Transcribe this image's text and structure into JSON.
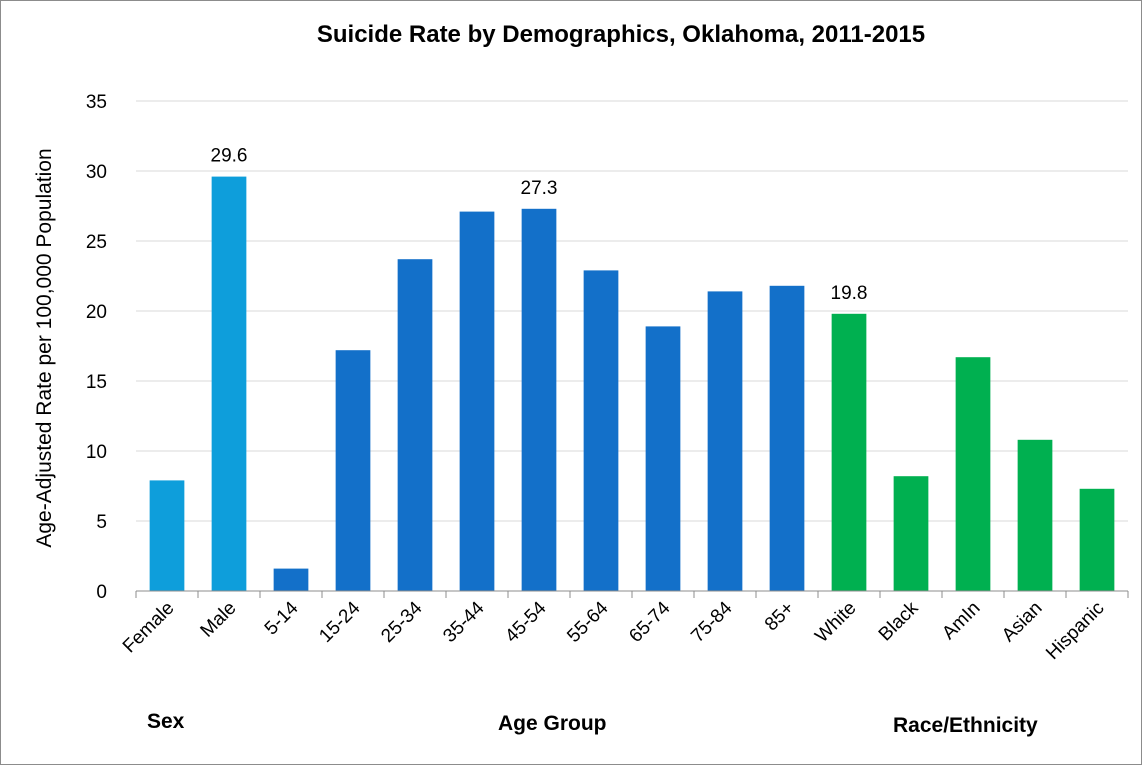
{
  "chart_data": {
    "type": "bar",
    "title": "Suicide Rate by Demographics, Oklahoma, 2011-2015",
    "xlabel": "",
    "ylabel": "Age-Adjusted Rate per 100,000 Population",
    "ylim": [
      0,
      35
    ],
    "yticks": [
      0,
      5,
      10,
      15,
      20,
      25,
      30,
      35
    ],
    "grid": true,
    "categories": [
      "Female",
      "Male",
      "5-14",
      "15-24",
      "25-34",
      "35-44",
      "45-54",
      "55-64",
      "65-74",
      "75-84",
      "85+",
      "White",
      "Black",
      "AmIn",
      "Asian",
      "Hispanic"
    ],
    "values": [
      7.9,
      29.6,
      1.6,
      17.2,
      23.7,
      27.1,
      27.3,
      22.9,
      18.9,
      21.4,
      21.8,
      19.8,
      8.2,
      16.7,
      10.8,
      7.3
    ],
    "data_labels": {
      "Male": "29.6",
      "45-54": "27.3",
      "White": "19.8"
    },
    "groups": [
      {
        "label": "Sex",
        "categories": [
          "Female",
          "Male"
        ],
        "color": "#0e9edb"
      },
      {
        "label": "Age Group",
        "categories": [
          "5-14",
          "15-24",
          "25-34",
          "35-44",
          "45-54",
          "55-64",
          "65-74",
          "75-84",
          "85+"
        ],
        "color": "#1370c9"
      },
      {
        "label": "Race/Ethnicity",
        "categories": [
          "White",
          "Black",
          "AmIn",
          "Asian",
          "Hispanic"
        ],
        "color": "#00b050"
      }
    ]
  }
}
